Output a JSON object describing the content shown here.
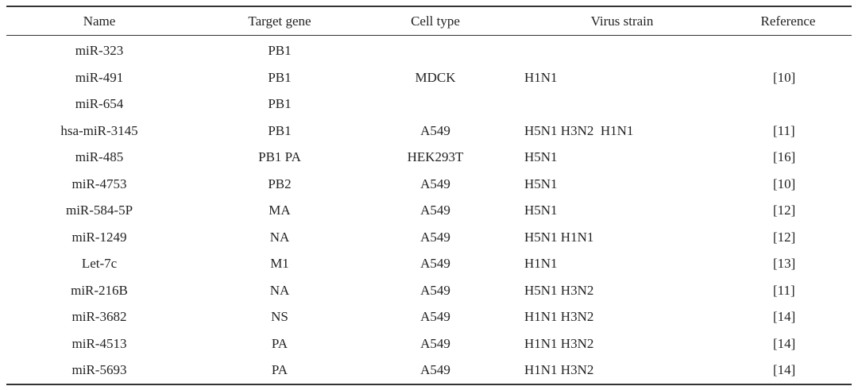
{
  "table": {
    "header": [
      "Name",
      "Target gene",
      "Cell type",
      "Virus strain",
      "Reference"
    ],
    "rows": [
      {
        "name": "miR-323",
        "target": "PB1"
      },
      {
        "name": "miR-491",
        "target": "PB1",
        "cell": "MDCK",
        "virus": "H1N1",
        "ref": "[10]"
      },
      {
        "name": "miR-654",
        "target": "PB1"
      },
      {
        "name": "hsa-miR-3145",
        "target": "PB1",
        "cell": "A549",
        "virus": "H5N1 H3N2  H1N1",
        "ref": "[11]"
      },
      {
        "name": "miR-485",
        "target": "PB1 PA",
        "cell": "HEK293T",
        "virus": "H5N1",
        "ref": "[16]"
      },
      {
        "name": "miR-4753",
        "target": "PB2",
        "cell": "A549",
        "virus": "H5N1",
        "ref": "[10]"
      },
      {
        "name": "miR-584-5P",
        "target": "MA",
        "cell": "A549",
        "virus": "H5N1",
        "ref": "[12]"
      },
      {
        "name": "miR-1249",
        "target": "NA",
        "cell": "A549",
        "virus": "H5N1 H1N1",
        "ref": "[12]"
      },
      {
        "name": "Let-7c",
        "target": "M1",
        "cell": "A549",
        "virus": "H1N1",
        "ref": "[13]"
      },
      {
        "name": "miR-216B",
        "target": "NA",
        "cell": "A549",
        "virus": "H5N1 H3N2",
        "ref": "[11]"
      },
      {
        "name": "miR-3682",
        "target": "NS",
        "cell": "A549",
        "virus": "H1N1 H3N2",
        "ref": "[14]"
      },
      {
        "name": "miR-4513",
        "target": "PA",
        "cell": "A549",
        "virus": "H1N1 H3N2",
        "ref": "[14]"
      },
      {
        "name": "miR-5693",
        "target": "PA",
        "cell": "A549",
        "virus": "H1N1 H3N2",
        "ref": "[14]"
      }
    ]
  }
}
